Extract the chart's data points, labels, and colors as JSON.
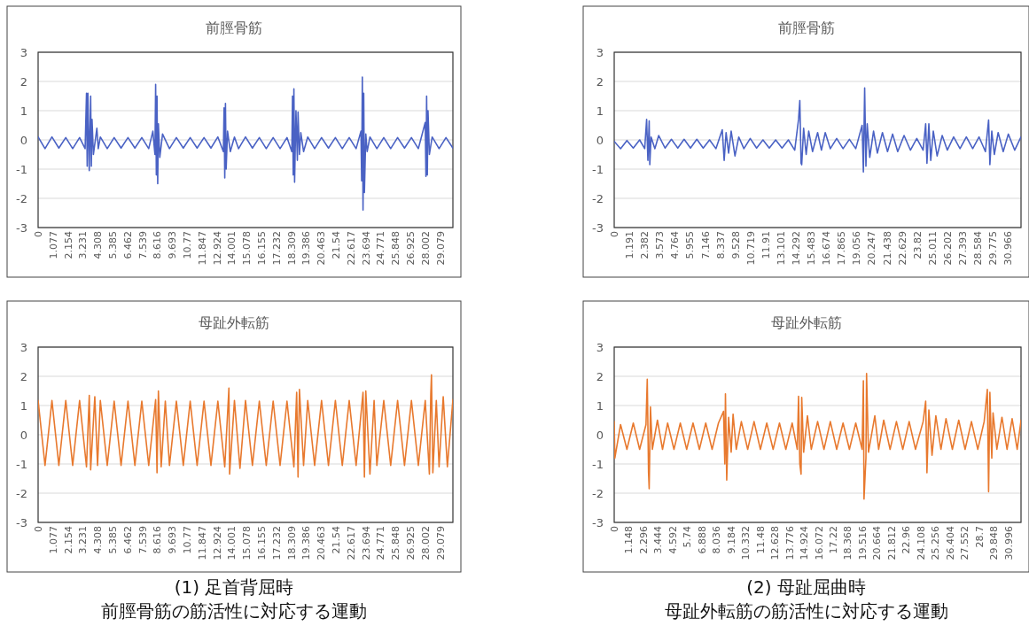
{
  "chart_data": [
    {
      "type": "line",
      "title": "前脛骨筋",
      "grid": "y",
      "ylim": [
        -3,
        3
      ],
      "yticks": [
        -3,
        -2,
        -1,
        0,
        1,
        2,
        3
      ],
      "xlim": [
        0,
        30
      ],
      "xticks": [
        0,
        1.077,
        2.154,
        3.231,
        4.308,
        5.385,
        6.462,
        7.539,
        8.616,
        9.693,
        10.77,
        11.847,
        12.924,
        14.001,
        15.078,
        16.155,
        17.232,
        18.309,
        19.386,
        20.463,
        21.54,
        22.617,
        23.694,
        24.771,
        25.848,
        26.925,
        28.002,
        29.079
      ],
      "x": [
        0,
        0.5,
        1,
        1.5,
        2,
        2.5,
        3,
        3.4,
        3.5,
        3.55,
        3.6,
        3.7,
        3.8,
        3.85,
        3.9,
        4.0,
        4.25,
        4.35,
        4.5,
        5,
        5.5,
        6,
        6.5,
        7,
        7.5,
        8,
        8.3,
        8.45,
        8.5,
        8.55,
        8.6,
        8.65,
        8.7,
        8.8,
        9.0,
        9.5,
        10,
        10.5,
        11,
        11.5,
        12,
        12.5,
        13,
        13.4,
        13.45,
        13.5,
        13.55,
        13.6,
        13.7,
        13.9,
        14.2,
        14.5,
        15,
        15.5,
        16,
        16.5,
        17,
        17.5,
        18,
        18.35,
        18.4,
        18.45,
        18.5,
        18.55,
        18.65,
        18.75,
        18.8,
        18.9,
        19.0,
        19.2,
        19.5,
        20,
        20.5,
        21,
        21.5,
        22,
        22.5,
        23,
        23.35,
        23.4,
        23.45,
        23.5,
        23.55,
        23.6,
        23.7,
        23.8,
        24.0,
        24.5,
        25,
        25.5,
        26,
        26.5,
        27,
        27.5,
        28,
        28.05,
        28.1,
        28.15,
        28.2,
        28.3,
        28.5,
        29,
        29.5,
        30
      ],
      "series": [
        {
          "color": "#4a62c4",
          "values": [
            0.1,
            -0.3,
            0.1,
            -0.28,
            0.08,
            -0.3,
            0.08,
            -0.3,
            1.6,
            -0.9,
            1.6,
            -1.05,
            1.5,
            -0.9,
            0.7,
            -0.5,
            0.4,
            -0.3,
            0.1,
            -0.3,
            0.08,
            -0.28,
            0.08,
            -0.28,
            0.08,
            -0.3,
            0.3,
            -0.5,
            1.9,
            -1.2,
            1.5,
            -1.5,
            0.55,
            -0.6,
            0.2,
            -0.3,
            0.08,
            -0.28,
            0.08,
            -0.28,
            0.08,
            -0.28,
            0.1,
            -0.4,
            1.1,
            -1.3,
            1.25,
            -1.0,
            0.3,
            -0.4,
            0.1,
            -0.3,
            0.1,
            -0.28,
            0.08,
            -0.3,
            0.08,
            -0.3,
            0.08,
            -0.4,
            1.5,
            -1.2,
            1.75,
            -1.45,
            1.0,
            -0.7,
            0.95,
            -0.5,
            0.25,
            -0.4,
            0.1,
            -0.3,
            0.08,
            -0.28,
            0.08,
            -0.3,
            0.08,
            -0.3,
            0.3,
            -1.4,
            2.15,
            -2.4,
            1.6,
            -1.8,
            0.2,
            -0.4,
            0.1,
            -0.3,
            0.08,
            -0.3,
            0.08,
            -0.28,
            0.08,
            -0.3,
            0.6,
            -1.25,
            1.5,
            -1.2,
            1.0,
            -0.5,
            0.1,
            -0.3,
            0.08,
            -0.28
          ]
        }
      ]
    },
    {
      "type": "line",
      "title": "前脛骨筋",
      "grid": "y",
      "ylim": [
        -3,
        3
      ],
      "yticks": [
        -3,
        -2,
        -1,
        0,
        1,
        2,
        3
      ],
      "xlim": [
        0,
        32
      ],
      "xticks": [
        0,
        1.191,
        2.382,
        3.573,
        4.764,
        5.955,
        7.146,
        8.337,
        9.528,
        10.719,
        11.91,
        13.101,
        14.292,
        15.483,
        16.674,
        17.865,
        19.056,
        20.247,
        21.438,
        22.629,
        23.82,
        25.011,
        26.202,
        27.393,
        28.584,
        29.775,
        30.966
      ],
      "x": [
        0,
        0.5,
        1,
        1.5,
        2,
        2.4,
        2.55,
        2.65,
        2.75,
        2.8,
        2.9,
        3.2,
        3.5,
        4,
        4.5,
        5,
        5.5,
        6,
        6.5,
        7,
        7.5,
        8,
        8.5,
        8.65,
        8.8,
        9.0,
        9.2,
        9.5,
        9.8,
        10.2,
        10.7,
        11.2,
        11.7,
        12.2,
        12.7,
        13.2,
        13.7,
        14.2,
        14.5,
        14.6,
        14.7,
        14.75,
        14.9,
        15.1,
        15.3,
        15.6,
        16,
        16.3,
        16.6,
        17,
        17.5,
        18,
        18.5,
        19,
        19.5,
        19.6,
        19.7,
        19.8,
        19.9,
        20.1,
        20.4,
        20.7,
        21.1,
        21.5,
        21.9,
        22.3,
        22.8,
        23.3,
        23.8,
        24.3,
        24.5,
        24.6,
        24.75,
        24.9,
        25.1,
        25.4,
        25.8,
        26.2,
        26.7,
        27.2,
        27.7,
        28.2,
        28.7,
        29.2,
        29.45,
        29.55,
        29.7,
        29.9,
        30.2,
        30.6,
        31,
        31.5,
        32
      ],
      "series": [
        {
          "color": "#4a62c4",
          "values": [
            -0.05,
            -0.3,
            -0.02,
            -0.28,
            0.0,
            -0.3,
            0.7,
            -0.7,
            0.65,
            -0.85,
            0.1,
            -0.3,
            0.15,
            -0.28,
            0.02,
            -0.28,
            0.02,
            -0.28,
            0.02,
            -0.28,
            0.0,
            -0.3,
            0.35,
            -0.7,
            0.25,
            -0.45,
            0.3,
            -0.55,
            0.1,
            -0.3,
            0.05,
            -0.28,
            0.0,
            -0.28,
            0.0,
            -0.28,
            0.0,
            -0.35,
            0.7,
            1.35,
            -0.8,
            -0.85,
            0.4,
            -0.5,
            0.3,
            -0.4,
            0.25,
            -0.35,
            0.25,
            -0.3,
            0.05,
            -0.3,
            0.02,
            -0.3,
            0.5,
            -1.1,
            1.78,
            -0.9,
            0.55,
            -0.6,
            0.3,
            -0.45,
            0.25,
            -0.4,
            0.2,
            -0.4,
            0.15,
            -0.35,
            0.05,
            -0.35,
            0.55,
            -0.8,
            0.55,
            -0.7,
            0.3,
            -0.55,
            0.15,
            -0.35,
            0.1,
            -0.3,
            0.1,
            -0.3,
            0.1,
            -0.4,
            0.68,
            -0.85,
            0.3,
            -0.5,
            0.25,
            -0.4,
            0.2,
            -0.35,
            0.1
          ]
        }
      ]
    },
    {
      "type": "line",
      "title": "母趾外転筋",
      "grid": "y",
      "ylim": [
        -3,
        3
      ],
      "yticks": [
        -3,
        -2,
        -1,
        0,
        1,
        2,
        3
      ],
      "xlim": [
        0,
        30
      ],
      "xticks": [
        0,
        1.077,
        2.154,
        3.231,
        4.308,
        5.385,
        6.462,
        7.539,
        8.616,
        9.693,
        10.77,
        11.847,
        12.924,
        14.001,
        15.078,
        16.155,
        17.232,
        18.309,
        19.386,
        20.463,
        21.54,
        22.617,
        23.694,
        24.771,
        25.848,
        26.925,
        28.002,
        29.079
      ],
      "annotations": [
        "(1) 足首背屈時",
        "前脛骨筋の筋活性に対応する運動"
      ],
      "x": [
        0,
        0.5,
        1,
        1.5,
        2,
        2.5,
        3,
        3.5,
        3.7,
        3.8,
        4.1,
        4.3,
        4.5,
        5,
        5.5,
        6,
        6.5,
        7,
        7.5,
        8,
        8.5,
        8.6,
        8.7,
        8.9,
        9.2,
        9.5,
        10,
        10.5,
        11,
        11.5,
        12,
        12.5,
        13,
        13.5,
        13.8,
        13.85,
        14.2,
        14.6,
        15,
        15.5,
        16,
        16.5,
        17,
        17.5,
        18,
        18.5,
        18.7,
        18.8,
        18.9,
        19.2,
        19.5,
        20,
        20.5,
        21,
        21.5,
        22,
        22.5,
        23,
        23.5,
        23.6,
        23.7,
        24.0,
        24.3,
        24.5,
        25,
        25.5,
        26,
        26.5,
        27,
        27.5,
        28,
        28.3,
        28.4,
        28.45,
        28.55,
        28.8,
        29.0,
        29.3,
        29.6,
        30
      ],
      "series": [
        {
          "color": "#e8792e",
          "values": [
            1.17,
            -1.05,
            1.17,
            -1.05,
            1.17,
            -1.05,
            1.17,
            -1.1,
            1.35,
            -1.2,
            1.3,
            -1.05,
            1.17,
            -1.05,
            1.15,
            -1.05,
            1.15,
            -1.05,
            1.15,
            -1.05,
            1.2,
            -1.3,
            1.5,
            -1.1,
            1.15,
            -1.05,
            1.15,
            -1.05,
            1.15,
            -1.05,
            1.15,
            -1.05,
            1.15,
            -1.1,
            1.6,
            -1.35,
            1.17,
            -1.15,
            1.17,
            -1.05,
            1.15,
            -1.05,
            1.15,
            -1.05,
            1.15,
            -1.1,
            1.45,
            -1.45,
            1.55,
            -1.05,
            1.17,
            -1.05,
            1.17,
            -1.05,
            1.17,
            -1.05,
            1.17,
            -1.05,
            1.45,
            -1.45,
            1.5,
            -1.35,
            1.17,
            -1.05,
            1.17,
            -1.05,
            1.17,
            -1.05,
            1.17,
            -1.05,
            1.17,
            -1.35,
            1.4,
            2.05,
            -1.3,
            1.17,
            -1.1,
            1.3,
            -1.1,
            1.2
          ]
        }
      ]
    },
    {
      "type": "line",
      "title": "母趾外転筋",
      "grid": "y",
      "ylim": [
        -3,
        3
      ],
      "yticks": [
        -3,
        -2,
        -1,
        0,
        1,
        2,
        3
      ],
      "xlim": [
        0,
        32
      ],
      "xticks": [
        0,
        1.148,
        2.296,
        3.444,
        4.592,
        5.74,
        6.888,
        8.036,
        9.184,
        10.332,
        11.48,
        12.628,
        13.776,
        14.924,
        16.072,
        17.22,
        18.368,
        19.516,
        20.664,
        21.812,
        22.96,
        24.108,
        25.256,
        26.404,
        27.552,
        28.7,
        29.848,
        30.996
      ],
      "annotations": [
        "(2) 母趾屈曲時",
        "母趾外転筋の筋活性に対応する運動"
      ],
      "x": [
        0,
        0.05,
        0.5,
        1,
        1.5,
        2,
        2.5,
        2.6,
        2.7,
        2.75,
        2.85,
        3.0,
        3.4,
        3.8,
        4.2,
        4.7,
        5.2,
        5.7,
        6.2,
        6.7,
        7.2,
        7.7,
        8.2,
        8.6,
        8.7,
        8.75,
        8.85,
        9.0,
        9.2,
        9.35,
        9.6,
        10,
        10.5,
        11,
        11.5,
        12,
        12.5,
        13,
        13.5,
        14,
        14.4,
        14.5,
        14.6,
        14.7,
        14.75,
        14.9,
        15.2,
        15.5,
        16,
        16.5,
        17,
        17.5,
        18,
        18.5,
        19,
        19.5,
        19.6,
        19.65,
        19.8,
        19.85,
        20.0,
        20.5,
        20.8,
        21.2,
        21.7,
        22.2,
        22.7,
        23.2,
        23.7,
        24.3,
        24.5,
        24.6,
        24.75,
        25.0,
        25.3,
        25.7,
        26.1,
        26.6,
        27.1,
        27.6,
        28.1,
        28.6,
        29.1,
        29.35,
        29.45,
        29.55,
        29.7,
        29.8,
        30.1,
        30.5,
        30.9,
        31.3,
        31.7,
        32
      ],
      "series": [
        {
          "color": "#e8792e",
          "values": [
            0.45,
            -0.8,
            0.35,
            -0.5,
            0.4,
            -0.5,
            0.35,
            1.9,
            -1.3,
            -1.85,
            0.95,
            -0.5,
            0.5,
            -0.5,
            0.4,
            -0.5,
            0.4,
            -0.5,
            0.4,
            -0.5,
            0.4,
            -0.5,
            0.4,
            0.8,
            -1.0,
            1.4,
            -1.55,
            0.6,
            -0.6,
            0.7,
            -0.5,
            0.45,
            -0.5,
            0.45,
            -0.5,
            0.4,
            -0.5,
            0.4,
            -0.5,
            0.4,
            -0.5,
            1.32,
            -1.0,
            -1.35,
            1.28,
            -0.6,
            0.65,
            -0.5,
            0.45,
            -0.5,
            0.45,
            -0.5,
            0.4,
            -0.5,
            0.4,
            -0.5,
            1.85,
            -2.2,
            -0.8,
            2.1,
            -0.6,
            0.65,
            -0.5,
            0.5,
            -0.5,
            0.45,
            -0.5,
            0.45,
            -0.5,
            0.45,
            1.15,
            -1.3,
            0.85,
            -0.7,
            0.65,
            -0.5,
            0.55,
            -0.5,
            0.5,
            -0.5,
            0.45,
            -0.5,
            0.45,
            1.55,
            -1.95,
            1.45,
            -0.8,
            0.75,
            -0.5,
            0.6,
            -0.5,
            0.55,
            -0.5,
            0.5
          ]
        }
      ]
    }
  ]
}
